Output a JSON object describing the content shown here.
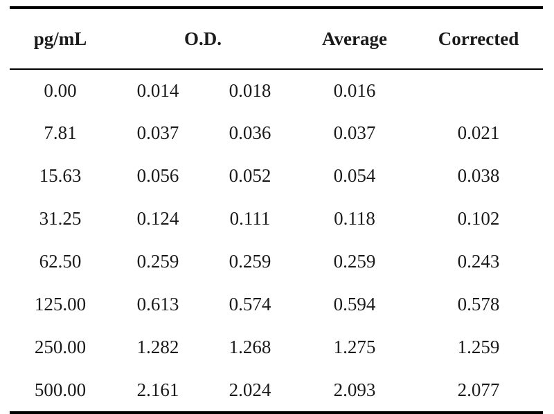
{
  "table": {
    "headers": {
      "concentration": "pg/mL",
      "od": "O.D.",
      "average": "Average",
      "corrected": "Corrected"
    },
    "rows": [
      {
        "concentration": "0.00",
        "od1": "0.014",
        "od2": "0.018",
        "average": "0.016",
        "corrected": ""
      },
      {
        "concentration": "7.81",
        "od1": "0.037",
        "od2": "0.036",
        "average": "0.037",
        "corrected": "0.021"
      },
      {
        "concentration": "15.63",
        "od1": "0.056",
        "od2": "0.052",
        "average": "0.054",
        "corrected": "0.038"
      },
      {
        "concentration": "31.25",
        "od1": "0.124",
        "od2": "0.111",
        "average": "0.118",
        "corrected": "0.102"
      },
      {
        "concentration": "62.50",
        "od1": "0.259",
        "od2": "0.259",
        "average": "0.259",
        "corrected": "0.243"
      },
      {
        "concentration": "125.00",
        "od1": "0.613",
        "od2": "0.574",
        "average": "0.594",
        "corrected": "0.578"
      },
      {
        "concentration": "250.00",
        "od1": "1.282",
        "od2": "1.268",
        "average": "1.275",
        "corrected": "1.259"
      },
      {
        "concentration": "500.00",
        "od1": "2.161",
        "od2": "2.024",
        "average": "2.093",
        "corrected": "2.077"
      }
    ]
  }
}
